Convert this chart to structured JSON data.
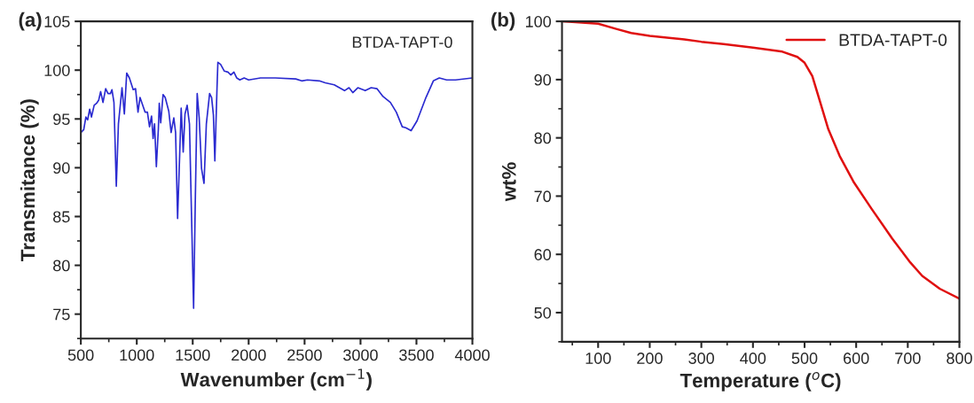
{
  "chart_data": [
    {
      "type": "line",
      "title": "(a)",
      "xlabel": "Wavenumber (cm$^{−1}$)",
      "ylabel": "Transmitance (%)",
      "annotations": [
        "BTDA-TAPT-0"
      ],
      "xlim": [
        500,
        4000
      ],
      "ylim": [
        72.5,
        105
      ],
      "xticks": [
        500,
        1000,
        1500,
        2000,
        2500,
        3000,
        3500,
        4000
      ],
      "yticks": [
        75,
        80,
        85,
        90,
        95,
        100,
        105
      ],
      "grid": false,
      "legend": false,
      "series": [
        {
          "color": "#2a2ad0",
          "x": [
            500,
            526,
            545,
            561,
            579,
            595,
            619,
            640,
            659,
            677,
            698,
            722,
            743,
            765,
            778,
            796,
            817,
            836,
            868,
            889,
            910,
            934,
            968,
            989,
            1011,
            1029,
            1074,
            1095,
            1114,
            1132,
            1146,
            1159,
            1175,
            1193,
            1201,
            1214,
            1235,
            1254,
            1286,
            1307,
            1331,
            1347,
            1365,
            1397,
            1415,
            1431,
            1450,
            1471,
            1508,
            1524,
            1540,
            1558,
            1579,
            1601,
            1622,
            1651,
            1669,
            1685,
            1698,
            1717,
            1725,
            1749,
            1783,
            1815,
            1841,
            1868,
            1894,
            1921,
            1960,
            2000,
            2106,
            2238,
            2421,
            2474,
            2526,
            2632,
            2685,
            2765,
            2857,
            2897,
            2931,
            2976,
            3042,
            3095,
            3148,
            3201,
            3267,
            3320,
            3373,
            3405,
            3452,
            3505,
            3585,
            3651,
            3704,
            3770,
            3849,
            4000
          ],
          "values": [
            93.6,
            93.9,
            95.2,
            94.9,
            96.0,
            95.2,
            96.4,
            96.6,
            96.9,
            97.8,
            96.7,
            98.1,
            97.6,
            97.6,
            98.0,
            96.7,
            88.1,
            94.5,
            98.2,
            95.5,
            99.7,
            99.2,
            98.0,
            98.1,
            95.7,
            97.2,
            95.7,
            95.7,
            94.2,
            95.3,
            93.0,
            94.5,
            90.1,
            94.0,
            96.6,
            94.6,
            97.5,
            97.2,
            95.8,
            93.6,
            95.1,
            93.6,
            84.8,
            96.1,
            91.6,
            95.5,
            96.4,
            94.5,
            75.6,
            87.2,
            97.6,
            95.1,
            89.9,
            88.4,
            94.5,
            97.6,
            97.2,
            95.4,
            90.7,
            98.1,
            100.8,
            100.6,
            99.9,
            99.8,
            99.5,
            99.8,
            99.2,
            99.0,
            99.2,
            99.0,
            99.2,
            99.2,
            99.1,
            98.9,
            99.0,
            98.9,
            98.7,
            98.5,
            97.9,
            98.2,
            97.7,
            98.2,
            97.9,
            98.2,
            98.1,
            97.3,
            96.7,
            95.7,
            94.2,
            94.1,
            93.8,
            94.8,
            97.2,
            98.9,
            99.2,
            99.0,
            99.0,
            99.2
          ]
        }
      ]
    },
    {
      "type": "line",
      "title": "(b)",
      "xlabel": "Temperature ($^{o}$C)",
      "ylabel": "wt%",
      "xlim": [
        30,
        800
      ],
      "ylim": [
        45,
        100
      ],
      "xticks": [
        100,
        200,
        300,
        400,
        500,
        600,
        700,
        800
      ],
      "yticks": [
        50,
        60,
        70,
        80,
        90,
        100
      ],
      "grid": false,
      "legend": "top right",
      "series": [
        {
          "name": "BTDA-TAPT-0",
          "color": "#e01010",
          "x": [
            31,
            100,
            135,
            164,
            200,
            267,
            300,
            343,
            400,
            457,
            486,
            500,
            515,
            529,
            546,
            568,
            596,
            630,
            670,
            705,
            728,
            762,
            800
          ],
          "values": [
            100,
            99.6,
            98.7,
            98.0,
            97.5,
            96.9,
            96.5,
            96.1,
            95.5,
            94.8,
            93.9,
            92.9,
            90.6,
            86.5,
            81.5,
            76.9,
            72.3,
            67.8,
            62.7,
            58.6,
            56.3,
            54.1,
            52.4
          ]
        }
      ]
    }
  ]
}
